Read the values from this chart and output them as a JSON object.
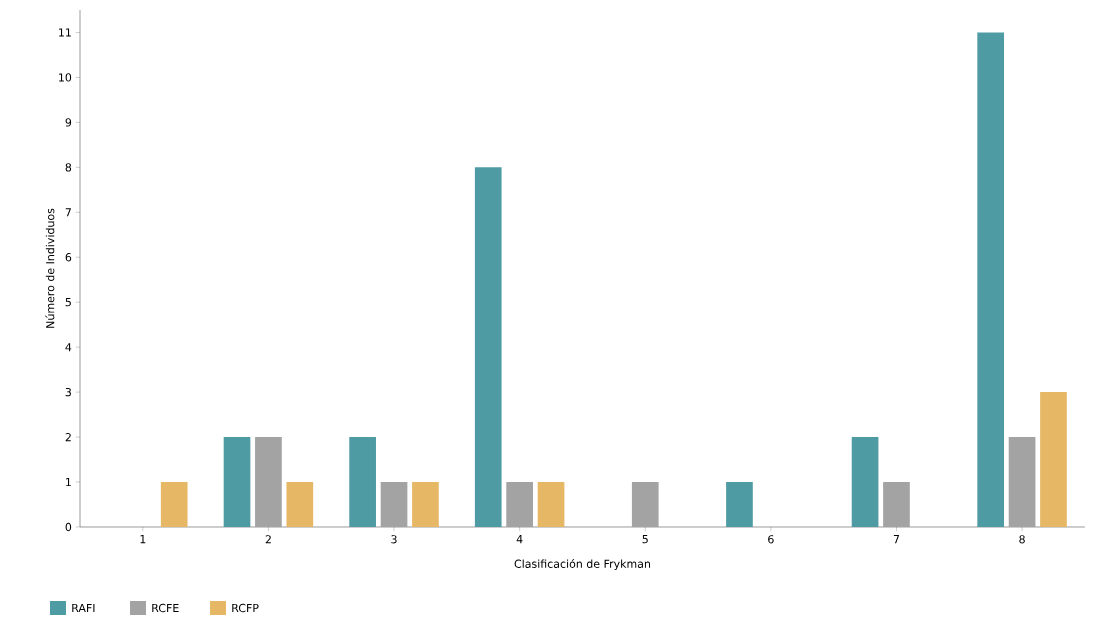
{
  "chart_data": {
    "type": "bar",
    "xlabel": "Clasificación de Frykman",
    "ylabel": "Número de Individuos",
    "categories": [
      "1",
      "2",
      "3",
      "4",
      "5",
      "6",
      "7",
      "8"
    ],
    "series": [
      {
        "name": "RAFI",
        "color": "#4f9ba4",
        "values": [
          0,
          2,
          2,
          8,
          0,
          1,
          2,
          11
        ]
      },
      {
        "name": "RCFE",
        "color": "#a3a3a3",
        "values": [
          0,
          2,
          1,
          1,
          1,
          0,
          1,
          2
        ]
      },
      {
        "name": "RCFP",
        "color": "#e6b865",
        "values": [
          1,
          1,
          1,
          1,
          0,
          0,
          0,
          3
        ]
      }
    ],
    "ylim": [
      0,
      11.5
    ],
    "yticks": [
      0,
      1,
      2,
      3,
      4,
      5,
      6,
      7,
      8,
      9,
      10,
      11
    ],
    "grid": false,
    "legend": "bottom left"
  }
}
